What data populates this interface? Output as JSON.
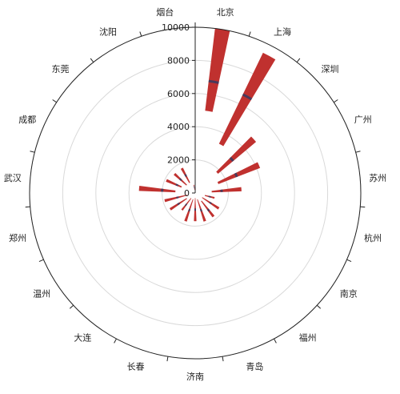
{
  "chart_data": {
    "type": "bar",
    "coordinate_system": "polar",
    "categories": [
      "北京",
      "上海",
      "深圳",
      "广州",
      "苏州",
      "杭州",
      "南京",
      "福州",
      "青岛",
      "济南",
      "长春",
      "大连",
      "温州",
      "郑州",
      "武汉",
      "成都",
      "东莞",
      "沈阳",
      "烟台"
    ],
    "series": [
      {
        "kind": "range-bar",
        "low": [
          5000,
          3300,
          1800,
          1500,
          1000,
          600,
          500,
          600,
          400,
          300,
          400,
          400,
          600,
          500,
          1200,
          900,
          700,
          700,
          200
        ],
        "high": [
          10000,
          9400,
          4800,
          4200,
          2800,
          1200,
          1700,
          1800,
          1800,
          1700,
          1800,
          1300,
          1800,
          1900,
          3400,
          1900,
          1700,
          1700,
          500
        ]
      },
      {
        "kind": "average-line",
        "values": [
          6800,
          6600,
          3000,
          2700,
          1600,
          900,
          1100,
          1300,
          1100,
          1000,
          1100,
          900,
          1200,
          1100,
          2000,
          1200,
          1200,
          1200,
          350
        ]
      }
    ],
    "radial_axis": {
      "min": 0,
      "max": 10000,
      "ticks": [
        0,
        2000,
        4000,
        6000,
        8000,
        10000
      ],
      "tick_labels": [
        "0",
        "2000",
        "4000",
        "6000",
        "8000",
        "10000"
      ]
    },
    "grid": true,
    "colors": {
      "bar": "#c0312f",
      "line": "#4a3a5a",
      "grid": "#d9d9d9",
      "axis": "#222222"
    }
  }
}
